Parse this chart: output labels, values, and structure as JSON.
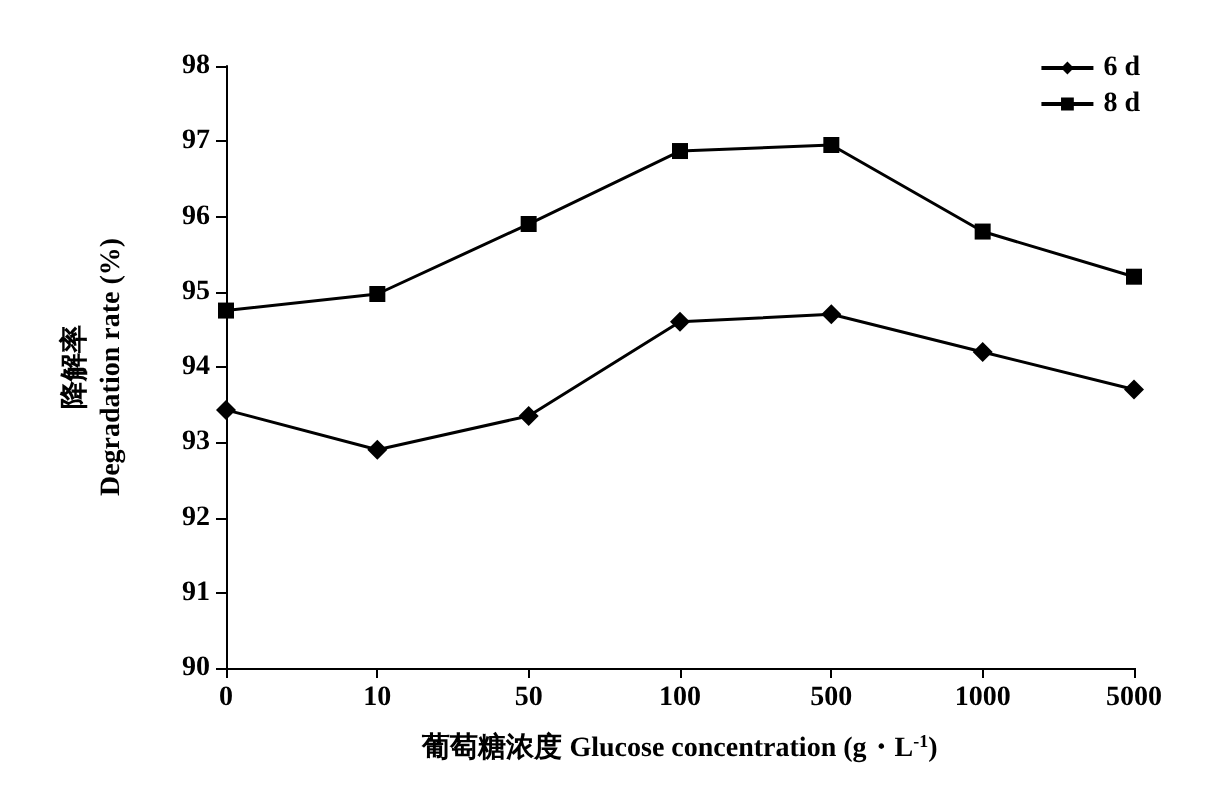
{
  "chart_data": {
    "type": "line",
    "xlabel": "葡萄糖浓度 Glucose concentration (g・L$^{-1}$)",
    "ylabel": "降解率\nDegradation rate (%)",
    "categories": [
      "0",
      "10",
      "50",
      "100",
      "500",
      "1000",
      "5000"
    ],
    "series": [
      {
        "name": "6 d",
        "color": "#000000",
        "marker": "diamond",
        "values": [
          93.43,
          92.9,
          93.35,
          94.6,
          94.7,
          94.2,
          93.7
        ]
      },
      {
        "name": "8 d",
        "color": "#000000",
        "marker": "square",
        "values": [
          94.75,
          94.97,
          95.9,
          96.87,
          96.95,
          95.8,
          95.2
        ]
      }
    ],
    "ylim": [
      90,
      98
    ],
    "yticks": [
      90,
      91,
      92,
      93,
      94,
      95,
      96,
      97,
      98
    ],
    "grid": false,
    "legend": "top right",
    "line_style": "solid"
  }
}
